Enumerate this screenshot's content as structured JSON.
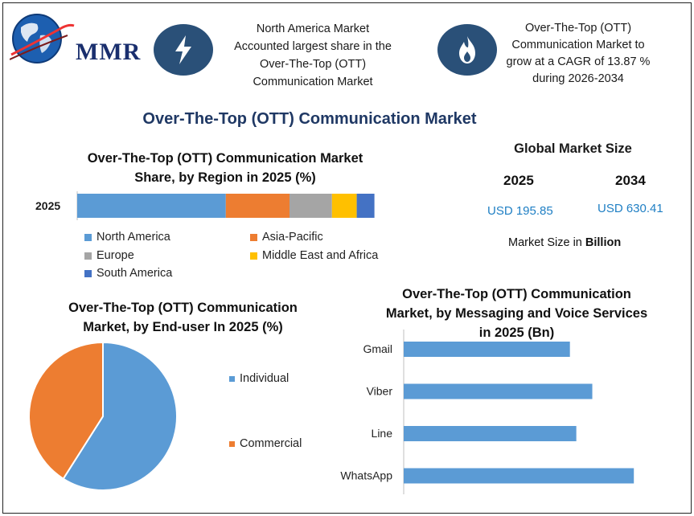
{
  "brand": {
    "logo_text": "MMR"
  },
  "header": {
    "fact1": [
      "North America Market",
      "Accounted largest share in the",
      "Over-The-Top (OTT)",
      "Communication Market"
    ],
    "fact2": [
      "Over-The-Top (OTT)",
      "Communication Market to",
      "grow at a CAGR of 13.87 %",
      "during 2026-2034"
    ],
    "icon1": "lightning-icon",
    "icon2": "flame-icon"
  },
  "main_title": "Over-The-Top (OTT) Communication Market",
  "global_market": {
    "title": "Global Market Size",
    "year1": "2025",
    "year2": "2034",
    "value1": "USD 195.85",
    "value2": "USD 630.41",
    "note_prefix": "Market Size in ",
    "note_bold": "Billion"
  },
  "colors": {
    "north_america": "#5b9bd5",
    "asia_pacific": "#ed7d31",
    "europe": "#a5a5a5",
    "mea": "#ffc000",
    "south_america": "#4472c4",
    "individual": "#5b9bd5",
    "commercial": "#ed7d31",
    "bar": "#5b9bd5",
    "title_blue": "#1f3864"
  },
  "chart_data": [
    {
      "type": "bar",
      "orientation": "horizontal-stacked",
      "title": [
        "Over-The-Top (OTT) Communication Market",
        "Share, by Region in 2025 (%)"
      ],
      "categories": [
        "2025"
      ],
      "series": [
        {
          "name": "North America",
          "values": [
            42
          ]
        },
        {
          "name": "Asia-Pacific",
          "values": [
            18
          ]
        },
        {
          "name": "Europe",
          "values": [
            12
          ]
        },
        {
          "name": "Middle East and Africa",
          "values": [
            7
          ]
        },
        {
          "name": "South America",
          "values": [
            5
          ]
        }
      ],
      "legend": "bottom"
    },
    {
      "type": "pie",
      "title": [
        "Over-The-Top (OTT) Communication",
        "Market, by End-user In 2025 (%)"
      ],
      "slices": [
        {
          "name": "Individual",
          "value": 59
        },
        {
          "name": "Commercial",
          "value": 41
        }
      ],
      "legend": "right"
    },
    {
      "type": "bar",
      "orientation": "horizontal",
      "title": [
        "Over-The-Top (OTT) Communication",
        "Market, by Messaging and Voice Services",
        "in 2025 (Bn)"
      ],
      "categories": [
        "Gmail",
        "Viber",
        "Line",
        "WhatsApp"
      ],
      "values": [
        52,
        59,
        54,
        72
      ],
      "xlim": [
        0,
        80
      ],
      "grid": false
    }
  ]
}
